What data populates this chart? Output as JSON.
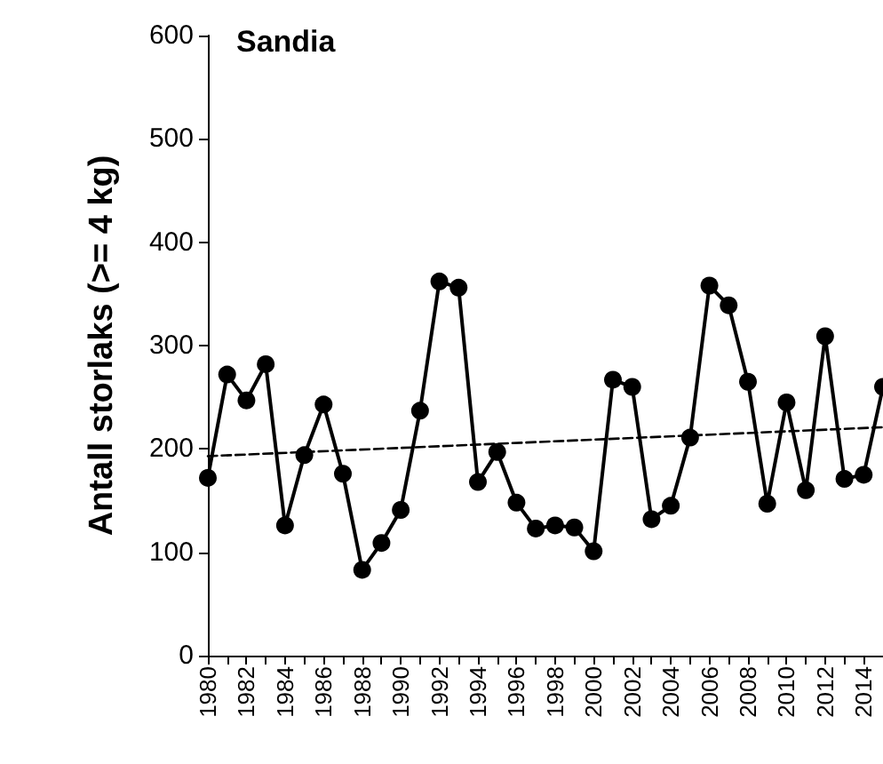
{
  "chart_data": {
    "type": "line",
    "title": "Sandia",
    "ylabel": "Antall storlaks (>= 4 kg)",
    "grid": false,
    "xlim": [
      1980,
      2015
    ],
    "xticks": [
      1980,
      {
        "value": 1981,
        "label": null
      },
      1982,
      {
        "value": 1983,
        "label": null
      },
      1984,
      {
        "value": 1985,
        "label": null
      },
      1986,
      {
        "value": 1987,
        "label": null
      },
      1988,
      {
        "value": 1989,
        "label": null
      },
      1990,
      {
        "value": 1991,
        "label": null
      },
      1992,
      {
        "value": 1993,
        "label": null
      },
      1994,
      {
        "value": 1995,
        "label": null
      },
      1996,
      {
        "value": 1997,
        "label": null
      },
      1998,
      {
        "value": 1999,
        "label": null
      },
      2000,
      {
        "value": 2001,
        "label": null
      },
      2002,
      {
        "value": 2003,
        "label": null
      },
      2004,
      {
        "value": 2005,
        "label": null
      },
      2006,
      {
        "value": 2007,
        "label": null
      },
      2008,
      {
        "value": 2009,
        "label": null
      },
      2010,
      {
        "value": 2011,
        "label": null
      },
      2012,
      {
        "value": 2013,
        "label": null
      },
      2014,
      {
        "value": 2015,
        "label": null
      }
    ],
    "ylim": [
      0,
      600
    ],
    "yticks": [
      0,
      100,
      200,
      300,
      400,
      500,
      600
    ],
    "x": [
      1980,
      1981,
      1982,
      1983,
      1984,
      1985,
      1986,
      1987,
      1988,
      1989,
      1990,
      1991,
      1992,
      1993,
      1994,
      1995,
      1996,
      1997,
      1998,
      1999,
      2000,
      2001,
      2002,
      2003,
      2004,
      2005,
      2006,
      2007,
      2008,
      2009,
      2010,
      2011,
      2012,
      2013,
      2014,
      2015
    ],
    "series": [
      {
        "color": "#000000",
        "marker": "circle",
        "line_style": "solid",
        "values": [
          172,
          272,
          247,
          282,
          126,
          194,
          243,
          176,
          83,
          109,
          141,
          237,
          362,
          356,
          168,
          197,
          148,
          123,
          126,
          124,
          101,
          267,
          260,
          132,
          145,
          211,
          358,
          339,
          265,
          147,
          245,
          160,
          309,
          171,
          175,
          260
        ]
      },
      {
        "color": "#000000",
        "marker": "none",
        "line_style": "dashed",
        "x": [
          1980,
          2015
        ],
        "values": [
          193,
          221
        ]
      }
    ]
  }
}
